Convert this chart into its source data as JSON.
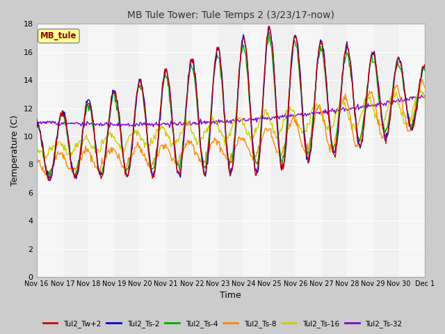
{
  "title": "MB Tule Tower: Tule Temps 2 (3/23/17-now)",
  "xlabel": "Time",
  "ylabel": "Temperature (C)",
  "ylim": [
    0,
    18
  ],
  "yticks": [
    0,
    2,
    4,
    6,
    8,
    10,
    12,
    14,
    16,
    18
  ],
  "legend_label": "MB_tule",
  "legend_text_color": "#8b0000",
  "legend_bg": "#ffff99",
  "series_colors": {
    "Tul2_Tw+2": "#cc0000",
    "Tul2_Ts-2": "#0000cc",
    "Tul2_Ts-4": "#00aa00",
    "Tul2_Ts-8": "#ff8800",
    "Tul2_Ts-16": "#cccc00",
    "Tul2_Ts-32": "#8800cc"
  },
  "xtick_labels": [
    "Nov 16",
    "Nov 17",
    "Nov 18",
    "Nov 19",
    "Nov 20",
    "Nov 21",
    "Nov 22",
    "Nov 23",
    "Nov 24",
    "Nov 25",
    "Nov 26",
    "Nov 27",
    "Nov 28",
    "Nov 29",
    "Nov 30",
    "Dec 1"
  ],
  "bg_light": "#f0f0f0",
  "bg_dark": "#dcdcdc"
}
